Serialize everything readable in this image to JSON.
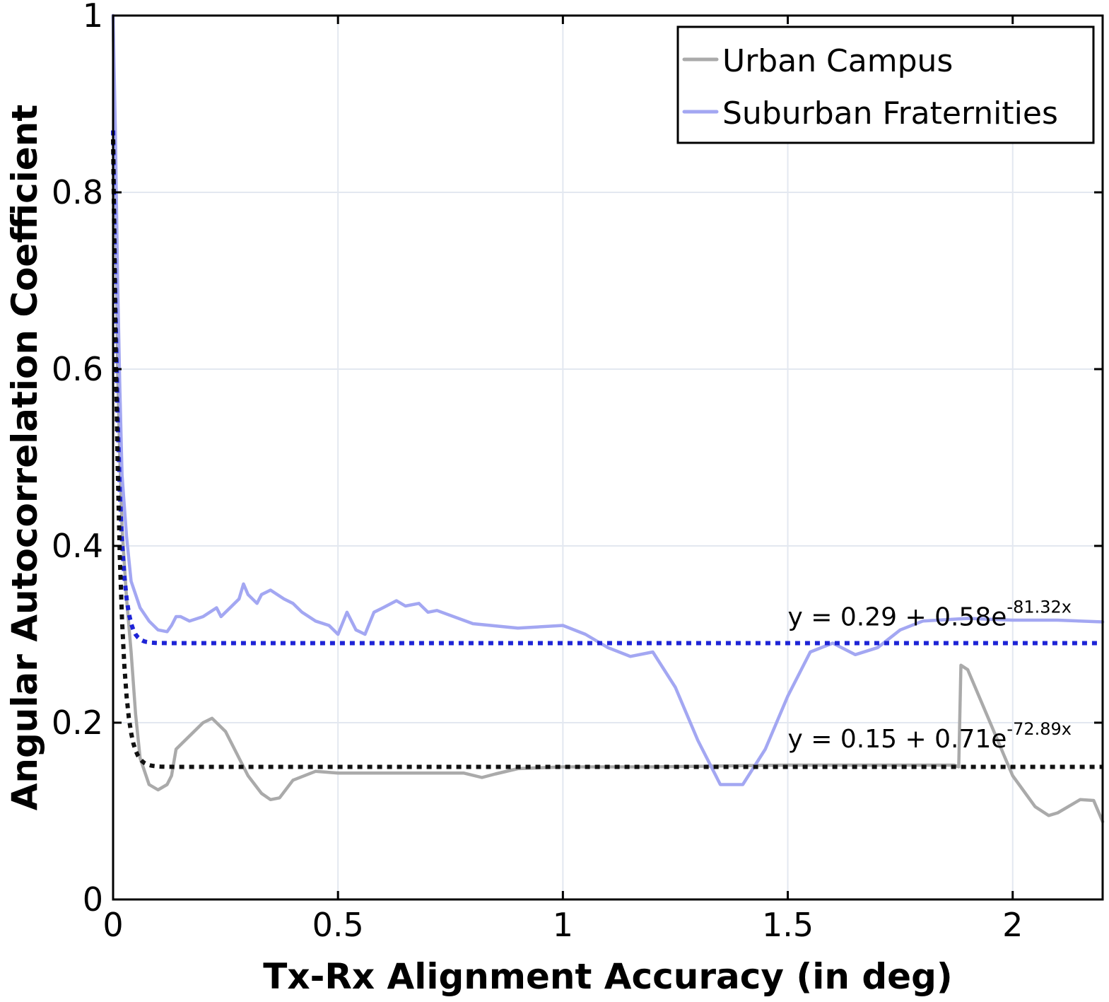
{
  "chart_data": {
    "type": "line",
    "xlabel": "Tx-Rx Alignment Accuracy (in deg)",
    "ylabel": "Angular Autocorrelation Coefficient",
    "xlim": [
      0,
      2.2
    ],
    "ylim": [
      0,
      1
    ],
    "x_ticks": [
      0,
      0.5,
      1,
      1.5,
      2
    ],
    "x_tick_labels": [
      "0",
      "0.5",
      "1",
      "1.5",
      "2"
    ],
    "y_ticks": [
      0,
      0.2,
      0.4,
      0.6,
      0.8,
      1
    ],
    "y_tick_labels": [
      "0",
      "0.2",
      "0.4",
      "0.6",
      "0.8",
      "1"
    ],
    "grid": true,
    "legend_position": "top-right",
    "series": [
      {
        "name": "Urban Campus",
        "color": "#aaaaaa",
        "x": [
          0,
          0.005,
          0.01,
          0.015,
          0.02,
          0.03,
          0.04,
          0.05,
          0.06,
          0.08,
          0.1,
          0.12,
          0.13,
          0.14,
          0.16,
          0.2,
          0.22,
          0.25,
          0.3,
          0.33,
          0.35,
          0.37,
          0.4,
          0.45,
          0.5,
          0.6,
          0.7,
          0.78,
          0.82,
          0.85,
          0.9,
          1.0,
          1.2,
          1.5,
          1.7,
          1.87,
          1.88,
          1.885,
          1.9,
          1.95,
          2.0,
          2.05,
          2.08,
          2.1,
          2.15,
          2.18,
          2.2
        ],
        "y": [
          1.0,
          0.8,
          0.6,
          0.5,
          0.42,
          0.34,
          0.28,
          0.21,
          0.16,
          0.13,
          0.124,
          0.13,
          0.14,
          0.17,
          0.18,
          0.2,
          0.205,
          0.19,
          0.14,
          0.12,
          0.113,
          0.115,
          0.135,
          0.145,
          0.143,
          0.143,
          0.143,
          0.143,
          0.138,
          0.142,
          0.148,
          0.15,
          0.15,
          0.152,
          0.152,
          0.152,
          0.15,
          0.265,
          0.26,
          0.2,
          0.14,
          0.105,
          0.095,
          0.098,
          0.113,
          0.112,
          0.088
        ]
      },
      {
        "name": "Suburban Fraternities",
        "color": "#a3a7f2",
        "x": [
          0,
          0.005,
          0.01,
          0.015,
          0.02,
          0.03,
          0.04,
          0.06,
          0.08,
          0.1,
          0.12,
          0.13,
          0.14,
          0.15,
          0.17,
          0.2,
          0.23,
          0.24,
          0.26,
          0.28,
          0.29,
          0.3,
          0.32,
          0.33,
          0.35,
          0.38,
          0.4,
          0.42,
          0.45,
          0.48,
          0.5,
          0.52,
          0.54,
          0.56,
          0.58,
          0.6,
          0.63,
          0.65,
          0.68,
          0.7,
          0.72,
          0.8,
          0.9,
          1.0,
          1.05,
          1.1,
          1.15,
          1.2,
          1.25,
          1.3,
          1.35,
          1.4,
          1.45,
          1.5,
          1.55,
          1.6,
          1.65,
          1.7,
          1.75,
          1.8,
          1.9,
          2.0,
          2.1,
          2.2
        ],
        "y": [
          1.0,
          0.87,
          0.7,
          0.58,
          0.48,
          0.41,
          0.36,
          0.33,
          0.315,
          0.305,
          0.303,
          0.31,
          0.32,
          0.32,
          0.315,
          0.32,
          0.33,
          0.32,
          0.33,
          0.34,
          0.357,
          0.345,
          0.335,
          0.345,
          0.35,
          0.34,
          0.335,
          0.325,
          0.315,
          0.31,
          0.3,
          0.325,
          0.305,
          0.3,
          0.325,
          0.33,
          0.338,
          0.332,
          0.335,
          0.325,
          0.327,
          0.312,
          0.307,
          0.31,
          0.3,
          0.285,
          0.275,
          0.28,
          0.24,
          0.18,
          0.13,
          0.13,
          0.17,
          0.23,
          0.28,
          0.29,
          0.277,
          0.285,
          0.305,
          0.315,
          0.318,
          0.316,
          0.316,
          0.314
        ]
      },
      {
        "name": "",
        "style": "dotted",
        "color": "#1e24d6",
        "formula": {
          "a": 0.29,
          "b": 0.58,
          "k": -81.32
        }
      },
      {
        "name": "",
        "style": "dotted",
        "color": "#111111",
        "formula": {
          "a": 0.15,
          "b": 0.71,
          "k": -72.89
        }
      }
    ],
    "annotations": [
      {
        "base": "y = 0.29 + 0.58e",
        "sup": "-81.32x",
        "anchor_x": 1.5,
        "anchor_y": 0.31
      },
      {
        "base": "y = 0.15 + 0.71e",
        "sup": "-72.89x",
        "anchor_x": 1.5,
        "anchor_y": 0.172
      }
    ]
  }
}
